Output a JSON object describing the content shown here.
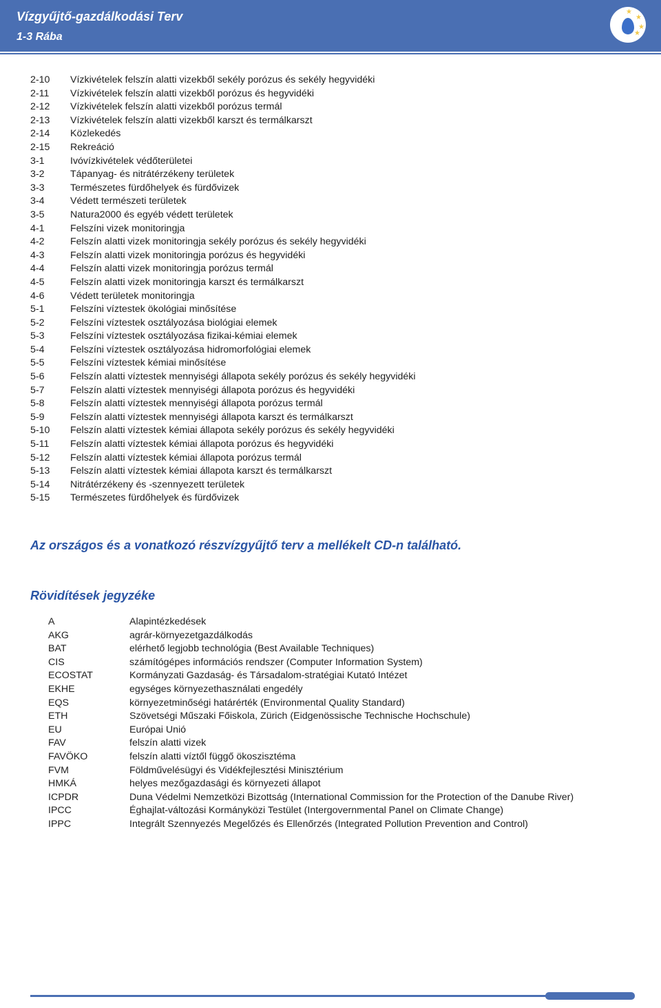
{
  "header": {
    "title": "Vízgyűjtő-gazdálkodási Terv",
    "subtitle": "1-3 Rába"
  },
  "numbered_list": [
    {
      "num": "2-10",
      "text": "Vízkivételek felszín alatti vizekből sekély porózus és sekély hegyvidéki"
    },
    {
      "num": "2-11",
      "text": "Vízkivételek felszín alatti vizekből porózus és hegyvidéki"
    },
    {
      "num": "2-12",
      "text": "Vízkivételek felszín alatti vizekből porózus termál"
    },
    {
      "num": "2-13",
      "text": "Vízkivételek felszín alatti vizekből karszt és termálkarszt"
    },
    {
      "num": "2-14",
      "text": "Közlekedés"
    },
    {
      "num": "2-15",
      "text": "Rekreáció"
    },
    {
      "num": "3-1",
      "text": "Ivóvízkivételek védőterületei"
    },
    {
      "num": "3-2",
      "text": "Tápanyag- és nitrátérzékeny területek"
    },
    {
      "num": "3-3",
      "text": "Természetes fürdőhelyek és fürdővizek"
    },
    {
      "num": "3-4",
      "text": "Védett természeti területek"
    },
    {
      "num": "3-5",
      "text": "Natura2000 és egyéb védett területek"
    },
    {
      "num": "4-1",
      "text": "Felszíni vizek monitoringja"
    },
    {
      "num": "4-2",
      "text": "Felszín alatti vizek monitoringja sekély porózus és sekély hegyvidéki"
    },
    {
      "num": "4-3",
      "text": "Felszín alatti vizek monitoringja porózus és hegyvidéki"
    },
    {
      "num": "4-4",
      "text": "Felszín alatti vizek monitoringja porózus termál"
    },
    {
      "num": "4-5",
      "text": "Felszín alatti vizek monitoringja karszt és termálkarszt"
    },
    {
      "num": "4-6",
      "text": "Védett területek monitoringja"
    },
    {
      "num": "5-1",
      "text": "Felszíni víztestek ökológiai minősítése"
    },
    {
      "num": "5-2",
      "text": "Felszíni víztestek osztályozása biológiai elemek"
    },
    {
      "num": "5-3",
      "text": "Felszíni víztestek osztályozása fizikai-kémiai elemek"
    },
    {
      "num": "5-4",
      "text": "Felszíni víztestek osztályozása hidromorfológiai elemek"
    },
    {
      "num": "5-5",
      "text": "Felszíni víztestek kémiai minősítése"
    },
    {
      "num": "5-6",
      "text": "Felszín alatti víztestek mennyiségi állapota sekély porózus és sekély hegyvidéki"
    },
    {
      "num": "5-7",
      "text": "Felszín alatti víztestek mennyiségi állapota porózus és hegyvidéki"
    },
    {
      "num": "5-8",
      "text": "Felszín alatti víztestek mennyiségi állapota porózus termál"
    },
    {
      "num": "5-9",
      "text": "Felszín alatti víztestek mennyiségi állapota karszt és termálkarszt"
    },
    {
      "num": "5-10",
      "text": "Felszín alatti víztestek kémiai állapota sekély porózus és sekély hegyvidéki"
    },
    {
      "num": "5-11",
      "text": "Felszín alatti víztestek kémiai állapota porózus és hegyvidéki"
    },
    {
      "num": "5-12",
      "text": "Felszín alatti víztestek kémiai állapota porózus termál"
    },
    {
      "num": "5-13",
      "text": "Felszín alatti víztestek kémiai állapota karszt és termálkarszt"
    },
    {
      "num": "5-14",
      "text": "Nitrátérzékeny és -szennyezett területek"
    },
    {
      "num": "5-15",
      "text": "Természetes fürdőhelyek és fürdővizek"
    }
  ],
  "cd_note": "Az országos és a vonatkozó részvízgyűjtő terv a mellékelt CD-n található.",
  "abbrev_heading": "Rövidítések jegyzéke",
  "abbreviations": [
    {
      "key": "A",
      "val": "Alapintézkedések"
    },
    {
      "key": "AKG",
      "val": "agrár-környezetgazdálkodás"
    },
    {
      "key": "BAT",
      "val": "elérhető legjobb technológia (Best Available Techniques)"
    },
    {
      "key": "CIS",
      "val": "számítógépes információs rendszer (Computer Information System)"
    },
    {
      "key": "ECOSTAT",
      "val": "Kormányzati Gazdaság- és Társadalom-stratégiai Kutató Intézet"
    },
    {
      "key": "EKHE",
      "val": "egységes környezethasználati engedély"
    },
    {
      "key": "EQS",
      "val": "környezetminőségi határérték (Environmental Quality Standard)"
    },
    {
      "key": "ETH",
      "val": "Szövetségi Műszaki Főiskola, Zürich (Eidgenössische Technische Hochschule)"
    },
    {
      "key": "EU",
      "val": "Európai Unió"
    },
    {
      "key": "FAV",
      "val": "felszín alatti vizek"
    },
    {
      "key": "FAVÖKO",
      "val": "felszín alatti víztől függő ökoszisztéma"
    },
    {
      "key": "FVM",
      "val": "Földművelésügyi és Vidékfejlesztési Minisztérium"
    },
    {
      "key": "HMKÁ",
      "val": "helyes mezőgazdasági és környezeti állapot"
    },
    {
      "key": "ICPDR",
      "val": "Duna Védelmi Nemzetközi Bizottság (International Commission for the Protection of the Danube River)"
    },
    {
      "key": "IPCC",
      "val": "Éghajlat-változási Kormányközi Testület (Intergovernmental Panel on Climate Change)"
    },
    {
      "key": "IPPC",
      "val": "Integrált Szennyezés Megelőzés és Ellenőrzés (Integrated Pollution Prevention and Control)"
    }
  ]
}
